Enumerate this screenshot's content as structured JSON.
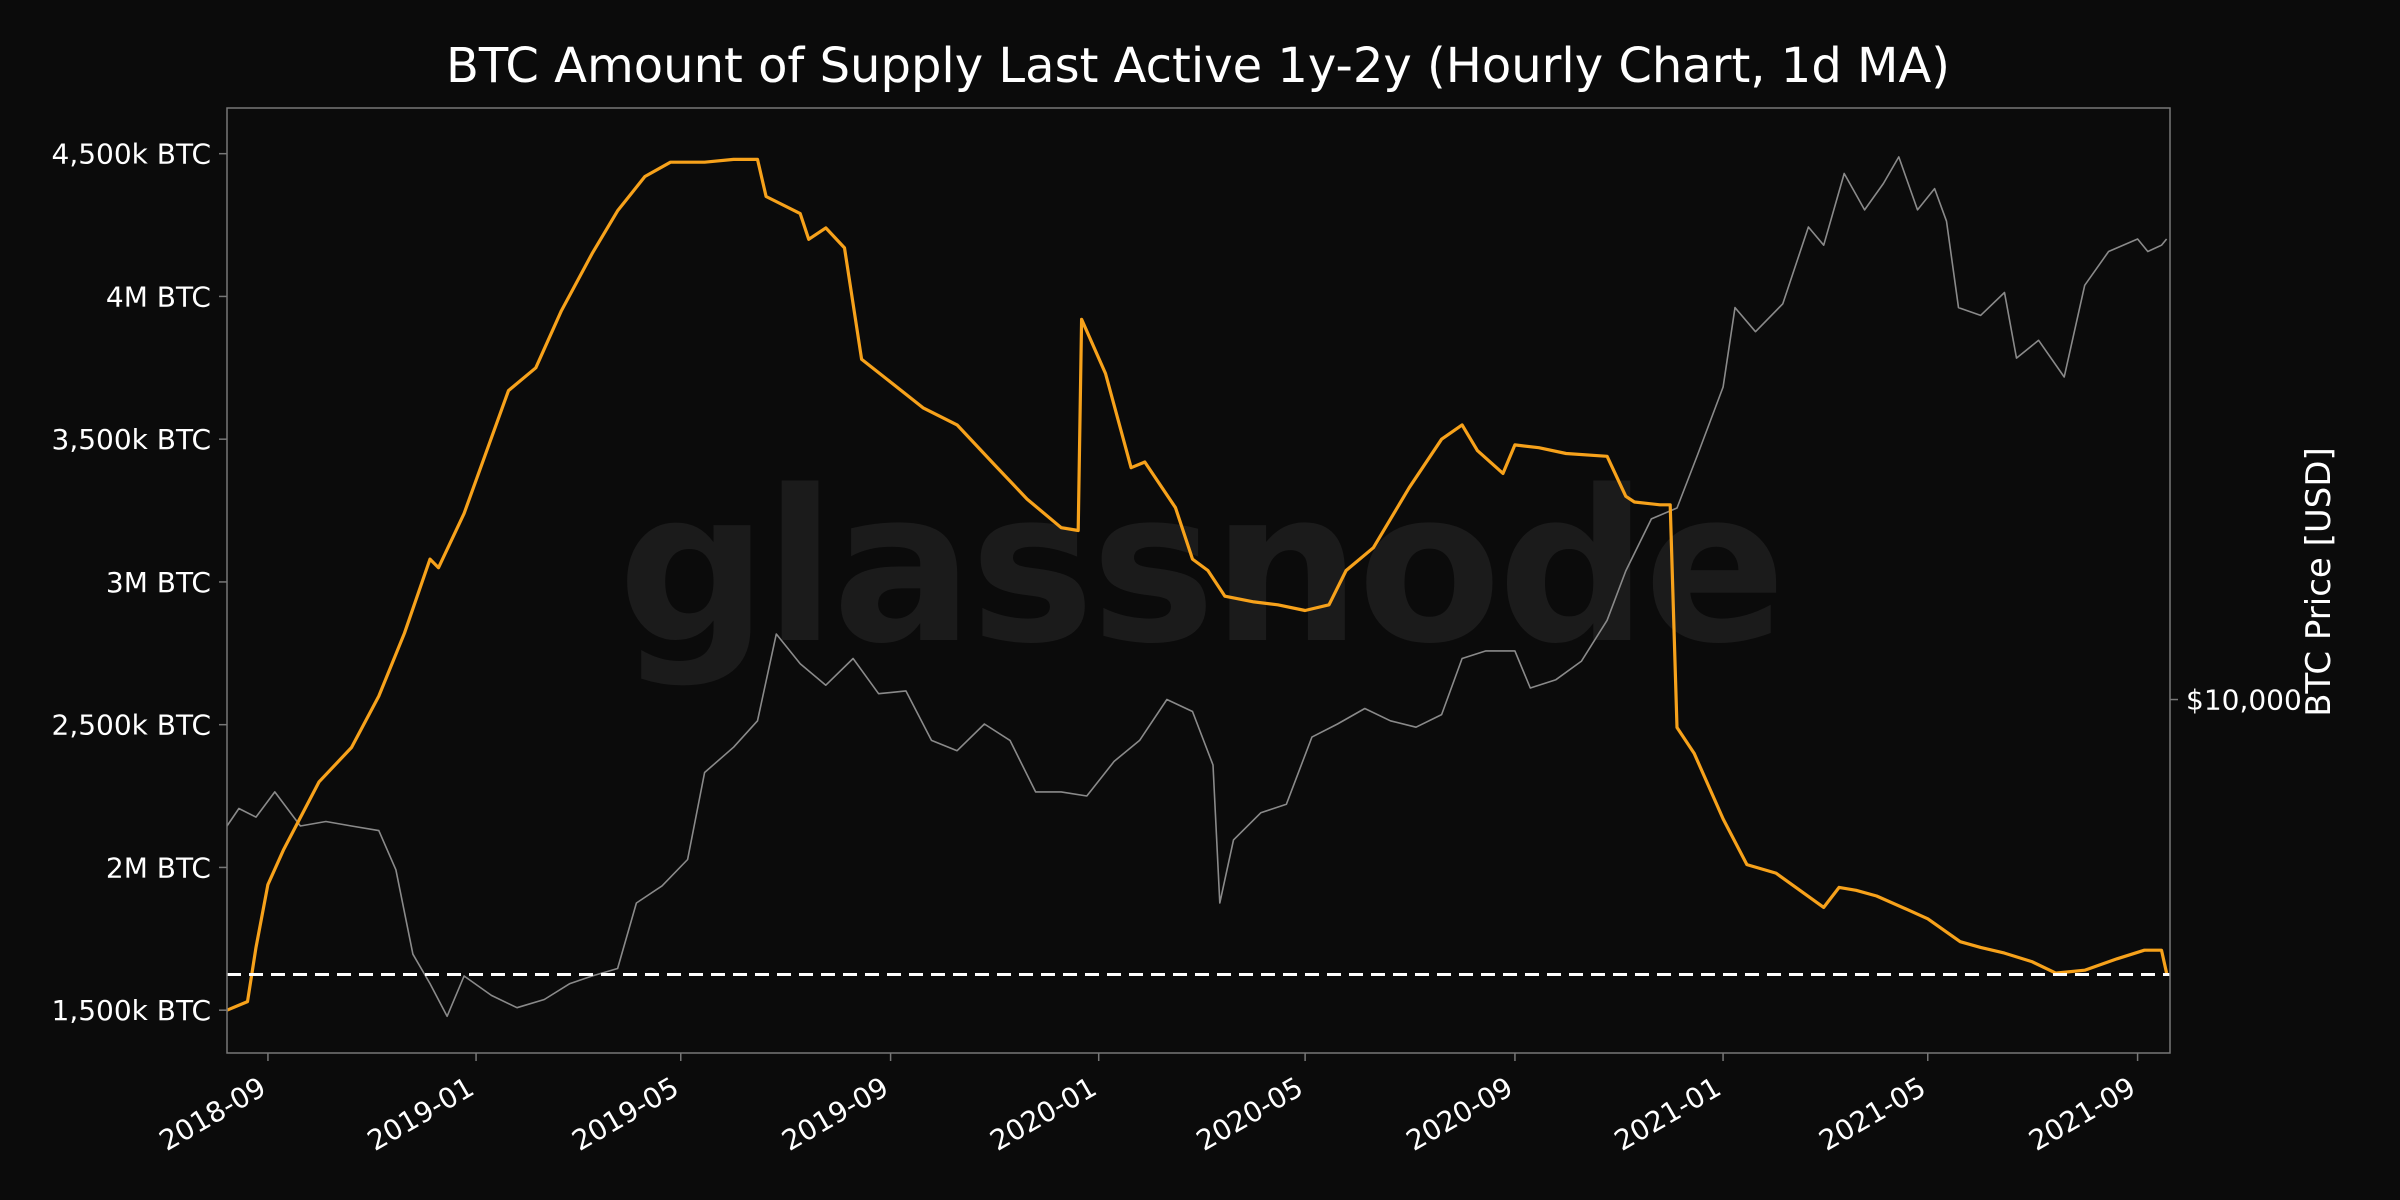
{
  "chart_data": {
    "type": "line",
    "title": "BTC Amount of Supply Last Active 1y-2y (Hourly Chart, 1d MA)",
    "watermark": "glassnode",
    "xlabel": "",
    "ylabel_left": "",
    "ylabel_right": "BTC Price [USD]",
    "x_range": [
      "2018-08-08",
      "2021-09-20"
    ],
    "x_ticks": [
      "2018-09",
      "2019-01",
      "2019-05",
      "2019-09",
      "2020-01",
      "2020-05",
      "2020-09",
      "2021-01",
      "2021-05",
      "2021-09"
    ],
    "y_left": {
      "range": [
        1350000,
        4660000
      ],
      "ticks": [
        {
          "value": 1500000,
          "label": "1,500k BTC"
        },
        {
          "value": 2000000,
          "label": "2M BTC"
        },
        {
          "value": 2500000,
          "label": "2,500k BTC"
        },
        {
          "value": 3000000,
          "label": "3M BTC"
        },
        {
          "value": 3500000,
          "label": "3,500k BTC"
        },
        {
          "value": 4000000,
          "label": "4M BTC"
        },
        {
          "value": 4500000,
          "label": "4,500k BTC"
        }
      ]
    },
    "y_right": {
      "scale": "log",
      "range": [
        3000,
        75000
      ],
      "ticks": [
        {
          "value": 10000,
          "label": "$10,000"
        }
      ]
    },
    "reference_line": {
      "value": 1625000,
      "style": "dashed",
      "color": "#ffffff"
    },
    "grid": false,
    "series": [
      {
        "axis": "left",
        "color": "#f7a21b",
        "x": [
          "2018-08-08",
          "2018-08-20",
          "2018-08-25",
          "2018-09-01",
          "2018-09-10",
          "2018-10-01",
          "2018-10-20",
          "2018-11-05",
          "2018-11-20",
          "2018-12-05",
          "2018-12-10",
          "2018-12-25",
          "2019-01-20",
          "2019-02-05",
          "2019-02-20",
          "2019-03-10",
          "2019-03-25",
          "2019-04-10",
          "2019-04-25",
          "2019-05-15",
          "2019-06-01",
          "2019-06-15",
          "2019-06-20",
          "2019-07-10",
          "2019-07-15",
          "2019-07-25",
          "2019-08-05",
          "2019-08-15",
          "2019-09-01",
          "2019-09-20",
          "2019-10-10",
          "2019-11-01",
          "2019-11-20",
          "2019-12-10",
          "2019-12-20",
          "2019-12-22",
          "2020-01-05",
          "2020-01-20",
          "2020-01-28",
          "2020-02-15",
          "2020-02-25",
          "2020-03-05",
          "2020-03-15",
          "2020-04-01",
          "2020-04-15",
          "2020-05-01",
          "2020-05-15",
          "2020-05-25",
          "2020-06-10",
          "2020-07-01",
          "2020-07-20",
          "2020-08-01",
          "2020-08-10",
          "2020-08-25",
          "2020-09-01",
          "2020-09-15",
          "2020-10-01",
          "2020-10-25",
          "2020-11-05",
          "2020-11-10",
          "2020-11-25",
          "2020-12-01",
          "2020-12-05",
          "2020-12-15",
          "2021-01-01",
          "2021-01-15",
          "2021-02-01",
          "2021-03-01",
          "2021-03-10",
          "2021-03-20",
          "2021-04-01",
          "2021-04-20",
          "2021-05-01",
          "2021-05-20",
          "2021-06-01",
          "2021-06-15",
          "2021-07-01",
          "2021-07-15",
          "2021-08-01",
          "2021-08-20",
          "2021-09-05",
          "2021-09-15",
          "2021-09-18"
        ],
        "values": [
          1500000,
          1530000,
          1720000,
          1940000,
          2060000,
          2300000,
          2420000,
          2600000,
          2820000,
          3080000,
          3050000,
          3240000,
          3670000,
          3750000,
          3950000,
          4150000,
          4300000,
          4420000,
          4470000,
          4470000,
          4480000,
          4480000,
          4350000,
          4290000,
          4200000,
          4240000,
          4170000,
          3780000,
          3700000,
          3610000,
          3550000,
          3410000,
          3290000,
          3190000,
          3180000,
          3920000,
          3730000,
          3400000,
          3420000,
          3260000,
          3080000,
          3040000,
          2950000,
          2930000,
          2920000,
          2900000,
          2920000,
          3040000,
          3120000,
          3330000,
          3500000,
          3550000,
          3460000,
          3380000,
          3480000,
          3470000,
          3450000,
          3440000,
          3300000,
          3280000,
          3270000,
          3270000,
          2490000,
          2400000,
          2170000,
          2010000,
          1980000,
          1860000,
          1930000,
          1920000,
          1900000,
          1850000,
          1820000,
          1740000,
          1720000,
          1700000,
          1670000,
          1630000,
          1640000,
          1680000,
          1710000,
          1710000,
          1630000
        ]
      },
      {
        "axis": "right",
        "color": "#8a8a8a",
        "x": [
          "2018-08-08",
          "2018-08-15",
          "2018-08-25",
          "2018-09-05",
          "2018-09-20",
          "2018-10-05",
          "2018-10-20",
          "2018-11-05",
          "2018-11-15",
          "2018-11-25",
          "2018-12-05",
          "2018-12-15",
          "2018-12-25",
          "2019-01-10",
          "2019-01-25",
          "2019-02-10",
          "2019-02-25",
          "2019-03-10",
          "2019-03-25",
          "2019-04-05",
          "2019-04-20",
          "2019-05-05",
          "2019-05-15",
          "2019-06-01",
          "2019-06-15",
          "2019-06-26",
          "2019-07-10",
          "2019-07-25",
          "2019-08-10",
          "2019-08-25",
          "2019-09-10",
          "2019-09-25",
          "2019-10-10",
          "2019-10-26",
          "2019-11-10",
          "2019-11-25",
          "2019-12-10",
          "2019-12-25",
          "2020-01-10",
          "2020-01-25",
          "2020-02-10",
          "2020-02-25",
          "2020-03-08",
          "2020-03-12",
          "2020-03-20",
          "2020-04-05",
          "2020-04-20",
          "2020-05-05",
          "2020-05-20",
          "2020-06-05",
          "2020-06-20",
          "2020-07-05",
          "2020-07-20",
          "2020-08-01",
          "2020-08-15",
          "2020-09-01",
          "2020-09-10",
          "2020-09-25",
          "2020-10-10",
          "2020-10-25",
          "2020-11-05",
          "2020-11-20",
          "2020-12-05",
          "2020-12-17",
          "2021-01-01",
          "2021-01-08",
          "2021-01-20",
          "2021-02-05",
          "2021-02-20",
          "2021-03-01",
          "2021-03-13",
          "2021-03-25",
          "2021-04-05",
          "2021-04-14",
          "2021-04-25",
          "2021-05-05",
          "2021-05-12",
          "2021-05-19",
          "2021-06-01",
          "2021-06-15",
          "2021-06-22",
          "2021-07-05",
          "2021-07-20",
          "2021-08-01",
          "2021-08-15",
          "2021-09-01",
          "2021-09-07",
          "2021-09-15",
          "2021-09-18"
        ],
        "values": [
          6500,
          6900,
          6700,
          7300,
          6500,
          6600,
          6500,
          6400,
          5600,
          4200,
          3800,
          3400,
          3900,
          3650,
          3500,
          3600,
          3800,
          3900,
          4000,
          5000,
          5300,
          5800,
          7800,
          8500,
          9300,
          12500,
          11300,
          10500,
          11500,
          10200,
          10300,
          8700,
          8400,
          9200,
          8700,
          7300,
          7300,
          7200,
          8100,
          8700,
          10000,
          9600,
          8000,
          5000,
          6200,
          6800,
          7000,
          8800,
          9200,
          9700,
          9300,
          9100,
          9500,
          11500,
          11800,
          11800,
          10400,
          10700,
          11400,
          13100,
          15500,
          18500,
          19200,
          23000,
          29000,
          38000,
          35000,
          38500,
          50000,
          47000,
          60000,
          53000,
          58000,
          63500,
          53000,
          57000,
          51000,
          38000,
          37000,
          40000,
          32000,
          34000,
          30000,
          41000,
          46000,
          48000,
          46000,
          47000,
          48000
        ]
      }
    ]
  }
}
